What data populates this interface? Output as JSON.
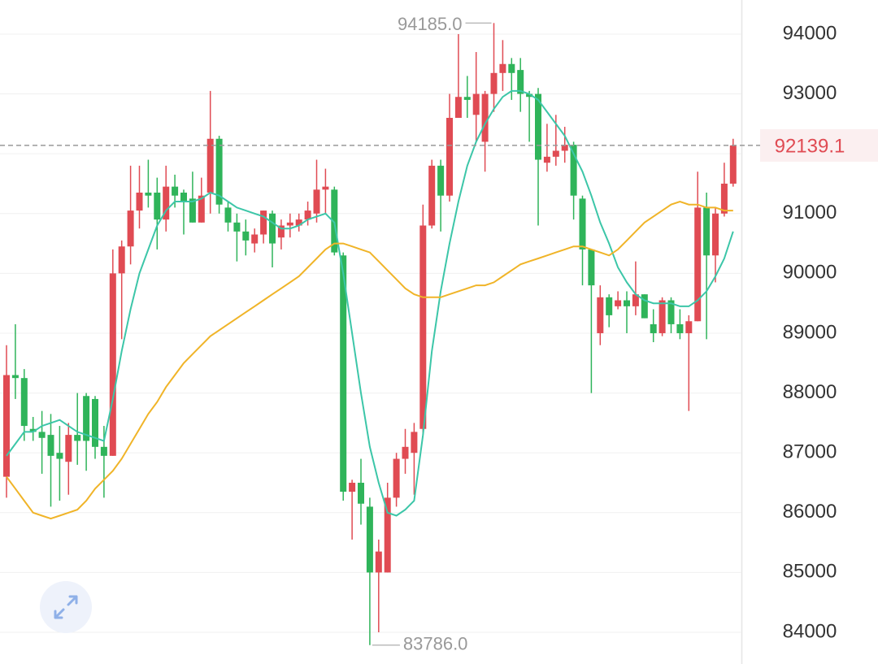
{
  "chart_data": {
    "type": "candlestick",
    "up_color": "#e04b53",
    "down_color": "#2fb45a",
    "open": [
      86600,
      88300,
      88250,
      87400,
      87350,
      87300,
      87000,
      86850,
      87300,
      87950,
      87900,
      87100,
      86950,
      90000,
      90450,
      91050,
      91350,
      91350,
      90900,
      91450,
      91350,
      91250,
      90850,
      91350,
      92250,
      91100,
      90850,
      90700,
      90500,
      90650,
      91000,
      90600,
      90800,
      90800,
      90900,
      91000,
      91400,
      91400,
      90300,
      86350,
      86500,
      86100,
      85000,
      85000,
      86250,
      86900,
      87000,
      87400,
      90800,
      91800,
      91300,
      92600,
      92950,
      92650,
      92200,
      93000,
      93350,
      93500,
      93400,
      93000,
      93000,
      91850,
      91950,
      92050,
      92150,
      91250,
      90400,
      89000,
      89600,
      89450,
      89550,
      89450,
      89650,
      89150,
      89000,
      89550,
      89150,
      89000,
      89200,
      91100,
      90300,
      91000,
      91500
    ],
    "high": [
      88800,
      89150,
      88400,
      87600,
      87700,
      87650,
      87450,
      87500,
      88000,
      88000,
      87950,
      87450,
      90400,
      90550,
      91800,
      91800,
      91900,
      91600,
      91800,
      91650,
      91400,
      91700,
      91600,
      93050,
      92300,
      91200,
      91000,
      90900,
      90750,
      91050,
      91050,
      90900,
      91000,
      91000,
      91200,
      91900,
      91750,
      91450,
      90350,
      86550,
      86900,
      86250,
      85550,
      86500,
      87000,
      87400,
      87500,
      91150,
      91900,
      91900,
      93000,
      94000,
      93300,
      93700,
      93050,
      94185,
      93900,
      93600,
      93600,
      93050,
      93100,
      92500,
      92650,
      92450,
      92200,
      91300,
      90400,
      89800,
      89650,
      89700,
      89700,
      90200,
      89650,
      89400,
      89600,
      89600,
      89400,
      89300,
      91700,
      91350,
      91100,
      91850,
      92250
    ],
    "low": [
      86250,
      87900,
      87200,
      87200,
      86650,
      86100,
      86200,
      86300,
      86800,
      86700,
      86900,
      86250,
      86950,
      88900,
      90150,
      90750,
      91100,
      90400,
      90700,
      91100,
      90650,
      90850,
      90850,
      91000,
      91000,
      90700,
      90200,
      90300,
      90350,
      90500,
      90100,
      90400,
      90600,
      90700,
      90800,
      90850,
      91000,
      90300,
      86200,
      85550,
      85800,
      83786,
      84000,
      85000,
      86100,
      86650,
      86300,
      87300,
      90750,
      90700,
      91200,
      92600,
      92600,
      92200,
      91700,
      92700,
      93050,
      92900,
      92700,
      92200,
      90800,
      91700,
      91800,
      91850,
      90900,
      89800,
      88000,
      88800,
      89100,
      89400,
      89000,
      89300,
      89250,
      88850,
      88950,
      89000,
      88900,
      87700,
      89200,
      88900,
      89850,
      90950,
      91450
    ],
    "close": [
      88300,
      88250,
      87450,
      87350,
      87250,
      86950,
      86900,
      87300,
      87200,
      87200,
      87100,
      86950,
      90000,
      90450,
      91050,
      91350,
      91300,
      90900,
      91450,
      91300,
      91200,
      90850,
      91300,
      92250,
      91150,
      90850,
      90700,
      90550,
      90650,
      91050,
      90500,
      90800,
      90850,
      90900,
      91050,
      91400,
      91450,
      90350,
      86350,
      86500,
      86150,
      85000,
      85350,
      86250,
      86900,
      87100,
      87350,
      90800,
      91800,
      91300,
      92600,
      92950,
      92900,
      93000,
      93000,
      93350,
      93500,
      93350,
      93000,
      92950,
      91900,
      91950,
      92050,
      92150,
      91300,
      90400,
      89800,
      89600,
      89300,
      89550,
      89450,
      89650,
      89250,
      89000,
      89550,
      89150,
      89000,
      89200,
      91100,
      90300,
      91000,
      91500,
      92139.1
    ],
    "lines": [
      {
        "color": "#3cc6a8",
        "values": [
          86950,
          87150,
          87350,
          87350,
          87450,
          87500,
          87550,
          87450,
          87350,
          87300,
          87250,
          87200,
          87900,
          88700,
          89400,
          90000,
          90400,
          90800,
          91050,
          91200,
          91200,
          91200,
          91250,
          91350,
          91300,
          91200,
          91100,
          91050,
          91000,
          90950,
          90850,
          90750,
          90750,
          90800,
          90900,
          90950,
          91000,
          90850,
          90000,
          89000,
          88000,
          87100,
          86500,
          86000,
          85950,
          86050,
          86200,
          87300,
          88700,
          89700,
          90500,
          91200,
          91800,
          92200,
          92500,
          92750,
          92950,
          93050,
          93050,
          93000,
          92900,
          92700,
          92500,
          92300,
          92000,
          91700,
          91300,
          90850,
          90500,
          90100,
          89850,
          89650,
          89550,
          89500,
          89500,
          89500,
          89450,
          89450,
          89550,
          89700,
          89950,
          90250,
          90700
        ]
      },
      {
        "color": "#f0b428",
        "values": [
          86600,
          86400,
          86200,
          86000,
          85950,
          85900,
          85950,
          86000,
          86050,
          86200,
          86400,
          86550,
          86700,
          86900,
          87150,
          87400,
          87650,
          87850,
          88100,
          88300,
          88500,
          88650,
          88800,
          88950,
          89050,
          89150,
          89250,
          89350,
          89450,
          89550,
          89650,
          89750,
          89850,
          89950,
          90100,
          90250,
          90400,
          90500,
          90500,
          90450,
          90400,
          90350,
          90200,
          90050,
          89900,
          89750,
          89650,
          89600,
          89600,
          89600,
          89650,
          89700,
          89750,
          89800,
          89800,
          89850,
          89950,
          90050,
          90150,
          90200,
          90250,
          90300,
          90350,
          90400,
          90450,
          90450,
          90400,
          90350,
          90300,
          90400,
          90550,
          90700,
          90850,
          90950,
          91050,
          91150,
          91200,
          91150,
          91150,
          91100,
          91100,
          91050,
          91050
        ]
      }
    ],
    "ylim": [
      83470,
      94570
    ],
    "yticks": [
      84000,
      85000,
      86000,
      87000,
      88000,
      89000,
      90000,
      91000,
      92000,
      93000,
      94000
    ],
    "grid": true,
    "max_label": {
      "value": 94185,
      "label": "94185.0"
    },
    "min_label": {
      "value": 83786,
      "label": "83786.0"
    },
    "last_price": 92139.1
  }
}
